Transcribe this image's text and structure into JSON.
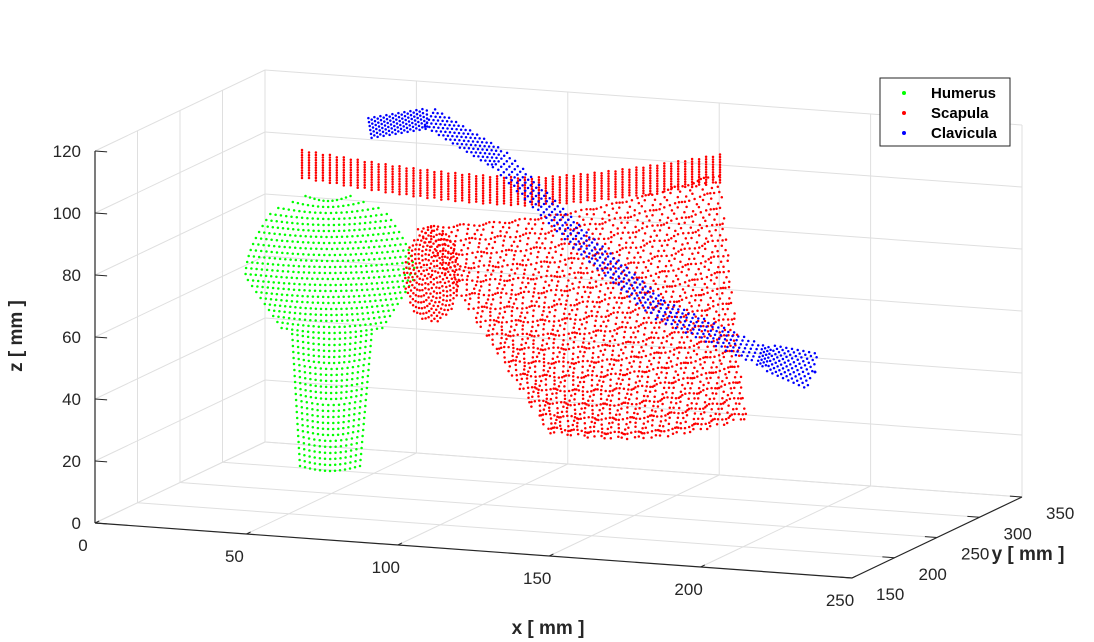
{
  "chart_data": {
    "type": "scatter",
    "projection": "3d",
    "title": "",
    "xlabel": "x [ mm ]",
    "ylabel": "y [ mm ]",
    "zlabel": "z [ mm ]",
    "xlim": [
      0,
      250
    ],
    "ylim": [
      150,
      350
    ],
    "zlim": [
      0,
      120
    ],
    "xticks": [
      "0",
      "50",
      "100",
      "150",
      "200",
      "250"
    ],
    "yticks": [
      "150",
      "200",
      "250",
      "300",
      "350"
    ],
    "zticks": [
      "0",
      "20",
      "40",
      "60",
      "80",
      "100",
      "120"
    ],
    "grid": true,
    "legend_position": "top-right",
    "series": [
      {
        "name": "Humerus",
        "color": "#00ff00",
        "marker": "point",
        "shape": "proximal humerus head and shaft",
        "z_range": [
          18,
          105
        ]
      },
      {
        "name": "Scapula",
        "color": "#ff0000",
        "marker": "point",
        "shape": "scapula body with acromion",
        "z_range": [
          28,
          120
        ]
      },
      {
        "name": "Clavicula",
        "color": "#0000ff",
        "marker": "point",
        "shape": "elongated curved clavicle",
        "z_range": [
          35,
          125
        ]
      }
    ]
  }
}
